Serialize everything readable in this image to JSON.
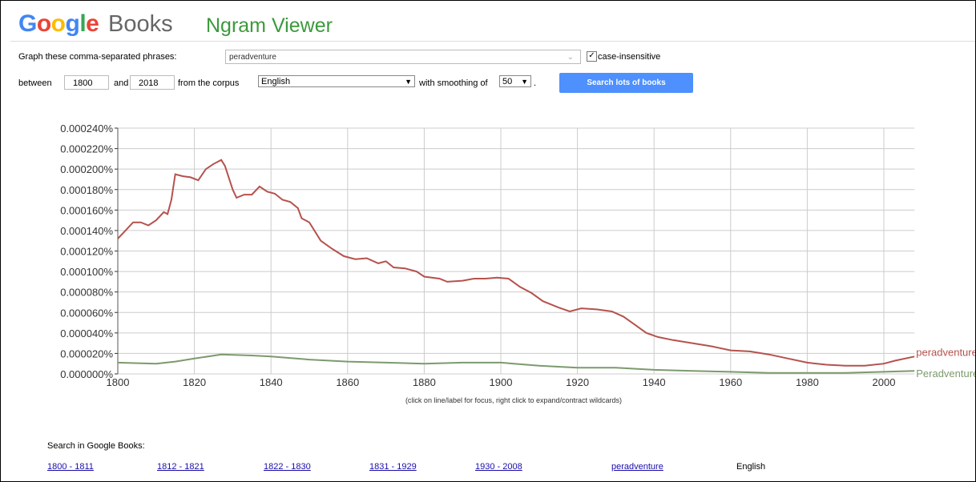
{
  "header": {
    "logo": "Google",
    "books": "Books",
    "ngram": "Ngram Viewer"
  },
  "form": {
    "phrases_label": "Graph these comma-separated phrases:",
    "phrases_value": "peradventure",
    "case_insensitive": "case-insensitive",
    "between": "between",
    "start_year": "1800",
    "and": "and",
    "end_year": "2018",
    "corpus_label": "from the corpus",
    "corpus": "English",
    "smoothing_label": "with smoothing of",
    "smoothing": "50",
    "period": ".",
    "button": "Search lots of books"
  },
  "chart_data": {
    "type": "line",
    "note": "(click on line/label for focus, right click to expand/contract wildcards)",
    "xlim": [
      1800,
      2008
    ],
    "xticks": [
      1800,
      1820,
      1840,
      1860,
      1880,
      1900,
      1920,
      1940,
      1960,
      1980,
      2000
    ],
    "ylim": [
      0,
      0.00024
    ],
    "yticks": [
      {
        "value": 0,
        "label": "0.000000%"
      },
      {
        "value": 2e-05,
        "label": "0.000020%"
      },
      {
        "value": 4e-05,
        "label": "0.000040%"
      },
      {
        "value": 6e-05,
        "label": "0.000060%"
      },
      {
        "value": 8e-05,
        "label": "0.000080%"
      },
      {
        "value": 0.0001,
        "label": "0.000100%"
      },
      {
        "value": 0.00012,
        "label": "0.000120%"
      },
      {
        "value": 0.00014,
        "label": "0.000140%"
      },
      {
        "value": 0.00016,
        "label": "0.000160%"
      },
      {
        "value": 0.00018,
        "label": "0.000180%"
      },
      {
        "value": 0.0002,
        "label": "0.000200%"
      },
      {
        "value": 0.00022,
        "label": "0.000220%"
      },
      {
        "value": 0.00024,
        "label": "0.000240%"
      }
    ],
    "grid": true,
    "series": [
      {
        "name": "peradventure",
        "color": "#b5524d",
        "x": [
          1800,
          1802,
          1804,
          1806,
          1808,
          1810,
          1812,
          1813,
          1814,
          1815,
          1817,
          1819,
          1821,
          1823,
          1825,
          1827,
          1828,
          1830,
          1831,
          1833,
          1835,
          1837,
          1839,
          1841,
          1843,
          1845,
          1847,
          1848,
          1850,
          1853,
          1856,
          1859,
          1862,
          1865,
          1868,
          1870,
          1872,
          1875,
          1878,
          1880,
          1884,
          1886,
          1890,
          1893,
          1896,
          1899,
          1902,
          1905,
          1908,
          1911,
          1915,
          1918,
          1921,
          1925,
          1929,
          1932,
          1935,
          1938,
          1941,
          1945,
          1950,
          1955,
          1960,
          1965,
          1970,
          1975,
          1980,
          1985,
          1990,
          1995,
          2000,
          2003,
          2008
        ],
        "values": [
          0.000132,
          0.00014,
          0.000148,
          0.000148,
          0.000145,
          0.00015,
          0.000158,
          0.000156,
          0.00017,
          0.000195,
          0.000193,
          0.000192,
          0.000189,
          0.0002,
          0.000205,
          0.000209,
          0.000203,
          0.00018,
          0.000172,
          0.000175,
          0.000175,
          0.000183,
          0.000178,
          0.000176,
          0.00017,
          0.000168,
          0.000162,
          0.000152,
          0.000148,
          0.00013,
          0.000122,
          0.000115,
          0.000112,
          0.000113,
          0.000108,
          0.00011,
          0.000104,
          0.000103,
          0.0001,
          9.5e-05,
          9.3e-05,
          9e-05,
          9.1e-05,
          9.3e-05,
          9.3e-05,
          9.4e-05,
          9.3e-05,
          8.5e-05,
          7.9e-05,
          7.1e-05,
          6.5e-05,
          6.1e-05,
          6.4e-05,
          6.3e-05,
          6.1e-05,
          5.6e-05,
          4.8e-05,
          4e-05,
          3.6e-05,
          3.3e-05,
          3e-05,
          2.7e-05,
          2.3e-05,
          2.2e-05,
          1.9e-05,
          1.5e-05,
          1.1e-05,
          9e-06,
          8e-06,
          8e-06,
          1e-05,
          1.3e-05,
          1.7e-05
        ]
      },
      {
        "name": "Peradventure",
        "color": "#7c9a6e",
        "x": [
          1800,
          1810,
          1815,
          1820,
          1827,
          1835,
          1840,
          1850,
          1860,
          1870,
          1880,
          1890,
          1900,
          1910,
          1920,
          1930,
          1940,
          1950,
          1960,
          1970,
          1980,
          1990,
          2000,
          2008
        ],
        "values": [
          1.1e-05,
          1e-05,
          1.2e-05,
          1.5e-05,
          1.9e-05,
          1.8e-05,
          1.7e-05,
          1.4e-05,
          1.2e-05,
          1.1e-05,
          1e-05,
          1.1e-05,
          1.1e-05,
          8e-06,
          6e-06,
          6e-06,
          4e-06,
          3e-06,
          2e-06,
          1e-06,
          1e-06,
          1e-06,
          2e-06,
          3e-06
        ]
      }
    ]
  },
  "footer": {
    "search_label": "Search in Google Books:",
    "links": [
      "1800 - 1811",
      "1812 - 1821",
      "1822 - 1830",
      "1831 - 1929",
      "1930 - 2008",
      "peradventure"
    ],
    "corpus": "English"
  }
}
